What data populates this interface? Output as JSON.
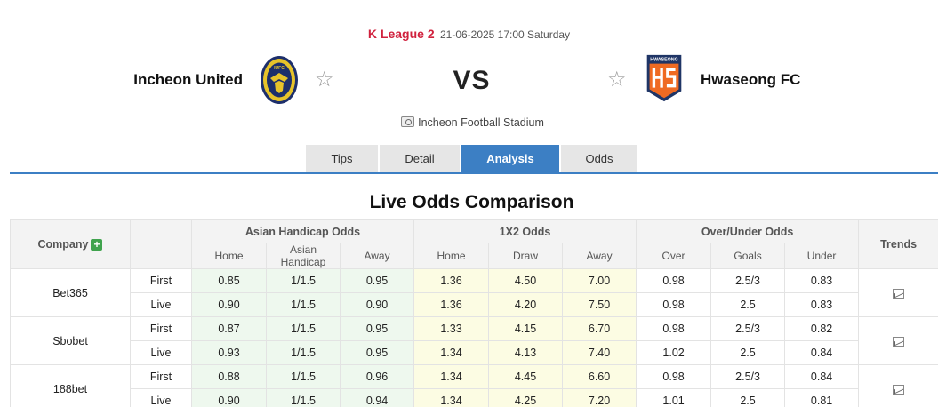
{
  "match": {
    "league": "K League 2",
    "datetime": "21-06-2025 17:00 Saturday",
    "home_team": "Incheon United",
    "away_team": "Hwaseong FC",
    "vs_label": "VS",
    "venue": "Incheon Football Stadium",
    "home_logo_text": "IUFC",
    "away_logo_text": "HWASEONG"
  },
  "tabs": [
    {
      "label": "Tips"
    },
    {
      "label": "Detail"
    },
    {
      "label": "Analysis",
      "active": true
    },
    {
      "label": "Odds"
    }
  ],
  "section_title": "Live Odds Comparison",
  "table": {
    "company_header": "Company",
    "trends_header": "Trends",
    "groups": {
      "asian_handicap": "Asian Handicap Odds",
      "x12": "1X2 Odds",
      "over_under": "Over/Under Odds"
    },
    "sub_headers": {
      "ah": [
        "Home",
        "Asian Handicap",
        "Away"
      ],
      "x12": [
        "Home",
        "Draw",
        "Away"
      ],
      "ou": [
        "Over",
        "Goals",
        "Under"
      ]
    },
    "companies": [
      {
        "name": "Bet365",
        "rows": [
          {
            "stage": "First",
            "ah": [
              "0.85",
              "1/1.5",
              "0.95"
            ],
            "x12": [
              "1.36",
              "4.50",
              "7.00"
            ],
            "ou": [
              "0.98",
              "2.5/3",
              "0.83"
            ]
          },
          {
            "stage": "Live",
            "ah": [
              "0.90",
              "1/1.5",
              "0.90"
            ],
            "x12": [
              "1.36",
              "4.20",
              "7.50"
            ],
            "ou": [
              "0.98",
              "2.5",
              "0.83"
            ]
          }
        ]
      },
      {
        "name": "Sbobet",
        "rows": [
          {
            "stage": "First",
            "ah": [
              "0.87",
              "1/1.5",
              "0.95"
            ],
            "x12": [
              "1.33",
              "4.15",
              "6.70"
            ],
            "ou": [
              "0.98",
              "2.5/3",
              "0.82"
            ]
          },
          {
            "stage": "Live",
            "ah": [
              "0.93",
              "1/1.5",
              "0.95"
            ],
            "x12": [
              "1.34",
              "4.13",
              "7.40"
            ],
            "ou": [
              "1.02",
              "2.5",
              "0.84"
            ]
          }
        ]
      },
      {
        "name": "188bet",
        "rows": [
          {
            "stage": "First",
            "ah": [
              "0.88",
              "1/1.5",
              "0.96"
            ],
            "x12": [
              "1.34",
              "4.45",
              "6.60"
            ],
            "ou": [
              "0.98",
              "2.5/3",
              "0.84"
            ]
          },
          {
            "stage": "Live",
            "ah": [
              "0.90",
              "1/1.5",
              "0.94"
            ],
            "x12": [
              "1.34",
              "4.25",
              "7.20"
            ],
            "ou": [
              "1.01",
              "2.5",
              "0.81"
            ]
          }
        ]
      }
    ]
  },
  "colors": {
    "league_red": "#d0213d",
    "tab_active": "#3c7fc4",
    "ah_bg": "#eef8ee",
    "x12_bg": "#fcfce3",
    "home_logo_gold": "#e7c32a",
    "home_logo_navy": "#1d2f6b",
    "away_logo_orange": "#ef6a22",
    "away_logo_navy": "#1f3566"
  }
}
